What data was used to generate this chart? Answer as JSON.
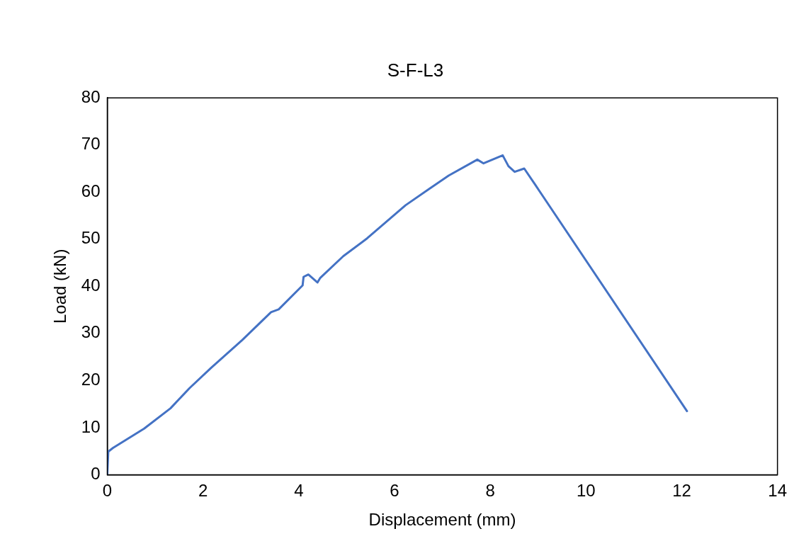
{
  "chart_data": {
    "type": "line",
    "title": "S-F-L3",
    "xlabel": "Displacement (mm)",
    "ylabel": "Load (kN)",
    "series": [
      {
        "color": "#4472c4",
        "x": [
          0,
          0.02,
          0.12,
          0.77,
          1.32,
          1.72,
          2.17,
          2.82,
          3.42,
          3.58,
          4.08,
          4.1,
          4.2,
          4.39,
          4.45,
          4.93,
          5.43,
          6.23,
          6.73,
          7.13,
          7.73,
          7.86,
          8.26,
          8.38,
          8.51,
          8.71,
          8.93,
          12.11
        ],
        "values": [
          0,
          4.9,
          5.7,
          9.8,
          14.1,
          18.4,
          22.7,
          28.6,
          34.5,
          35.1,
          40.2,
          42,
          42.5,
          40.8,
          41.8,
          46.4,
          50.2,
          57.2,
          60.7,
          63.5,
          66.9,
          66.1,
          67.8,
          65.5,
          64.3,
          65,
          61.7,
          13.5
        ]
      }
    ],
    "xlim": [
      0,
      14
    ],
    "xticks": [
      0,
      2,
      4,
      6,
      8,
      10,
      12,
      14
    ],
    "ylim": [
      0,
      80
    ],
    "yticks": [
      0,
      10,
      20,
      30,
      40,
      50,
      60,
      70,
      80
    ],
    "grid": false,
    "legend": false,
    "marker": "none",
    "line_style": "solid"
  }
}
